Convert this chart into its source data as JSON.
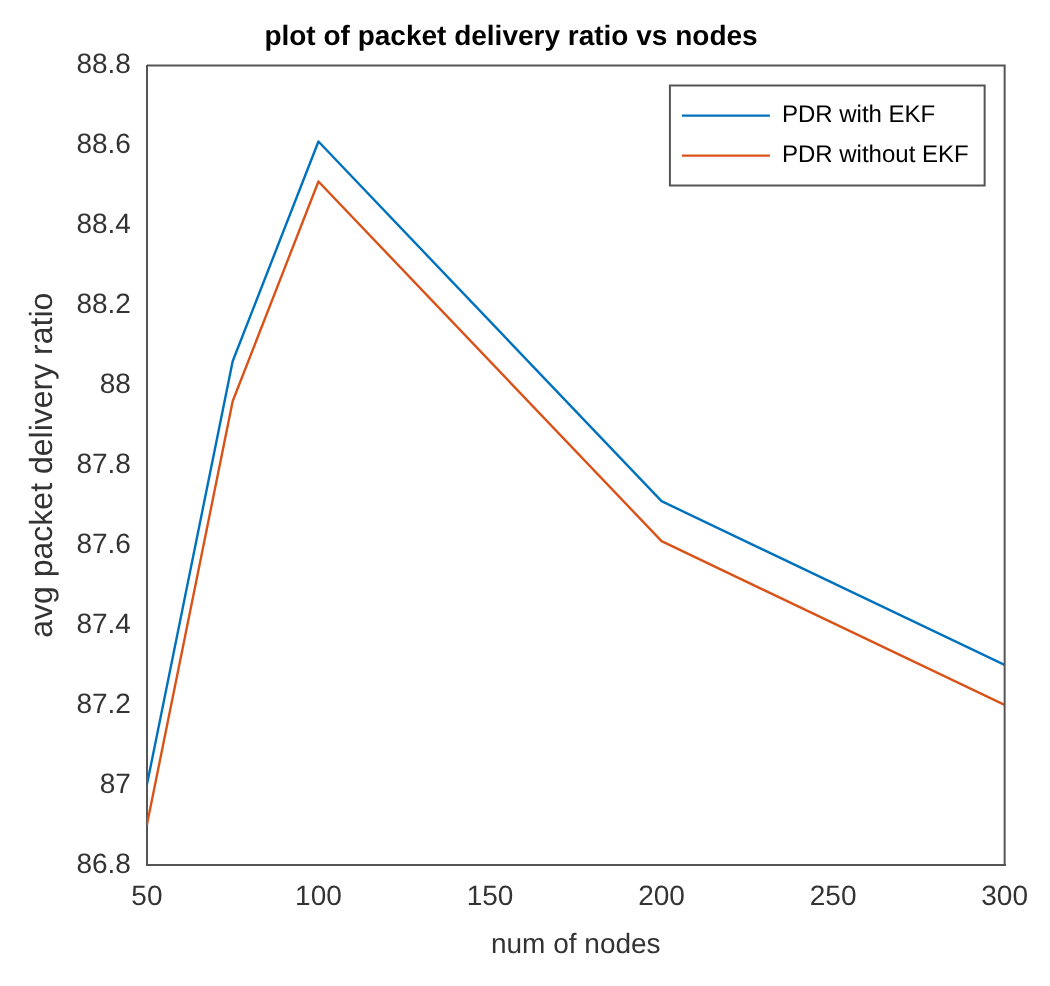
{
  "chart_data": {
    "type": "line",
    "title": "plot of packet delivery ratio vs nodes",
    "xlabel": "num of nodes",
    "ylabel": "avg packet delivery ratio",
    "x": [
      50,
      75,
      100,
      200,
      300
    ],
    "series": [
      {
        "name": "PDR with EKF",
        "color": "#0072bd",
        "values": [
          87.0,
          88.06,
          88.61,
          87.71,
          87.3
        ]
      },
      {
        "name": "PDR without EKF",
        "color": "#d95319",
        "values": [
          86.9,
          87.96,
          88.51,
          87.61,
          87.2
        ]
      }
    ],
    "xlim": [
      50,
      300
    ],
    "xticks": [
      50,
      100,
      150,
      200,
      250,
      300
    ],
    "ylim": [
      86.8,
      88.8
    ],
    "yticks": [
      86.8,
      87,
      87.2,
      87.4,
      87.6,
      87.8,
      88,
      88.2,
      88.4,
      88.6,
      88.8
    ],
    "grid": false,
    "legend": "top right",
    "marker": "none",
    "line_style": "solid"
  }
}
